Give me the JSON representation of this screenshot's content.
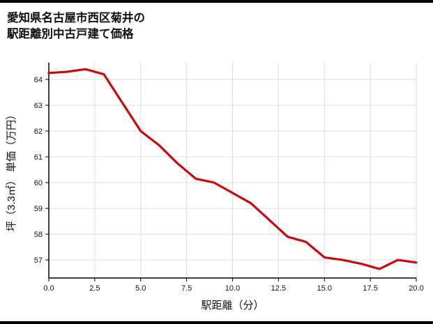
{
  "header": {
    "title_line1": "愛知県名古屋市西区菊井の",
    "title_line2": "駅距離別中古戸建て価格"
  },
  "chart_data": {
    "type": "line",
    "title": "愛知県名古屋市西区菊井の駅距離別中古戸建て価格",
    "xlabel": "駅距離（分）",
    "ylabel": "坪（3.3㎡） 単価（万円）",
    "x": [
      0,
      1,
      2,
      3,
      4,
      5,
      6,
      7,
      8,
      9,
      10,
      11,
      12,
      13,
      14,
      15,
      16,
      17,
      18,
      19,
      20
    ],
    "values": [
      64.25,
      64.3,
      64.4,
      64.2,
      63.1,
      62.0,
      61.45,
      60.75,
      60.15,
      60.0,
      59.6,
      59.2,
      58.55,
      57.9,
      57.7,
      57.1,
      57.0,
      56.85,
      56.65,
      57.0,
      56.9
    ],
    "xlim": [
      0,
      20
    ],
    "ylim": [
      56.3,
      64.65
    ],
    "x_ticks": [
      0,
      2.5,
      5,
      7.5,
      10,
      12.5,
      15,
      17.5,
      20
    ],
    "x_tick_labels": [
      "0.0",
      "2.5",
      "5.0",
      "7.5",
      "10.0",
      "12.5",
      "15.0",
      "17.5",
      "20.0"
    ],
    "y_ticks": [
      57,
      58,
      59,
      60,
      61,
      62,
      63,
      64
    ],
    "y_tick_labels": [
      "57",
      "58",
      "59",
      "60",
      "61",
      "62",
      "63",
      "64"
    ],
    "grid": true,
    "legend_position": "none",
    "line_color": "#c9090f",
    "grid_color": "#dddddd",
    "axis_color": "#000000",
    "text_color": "#111111"
  }
}
